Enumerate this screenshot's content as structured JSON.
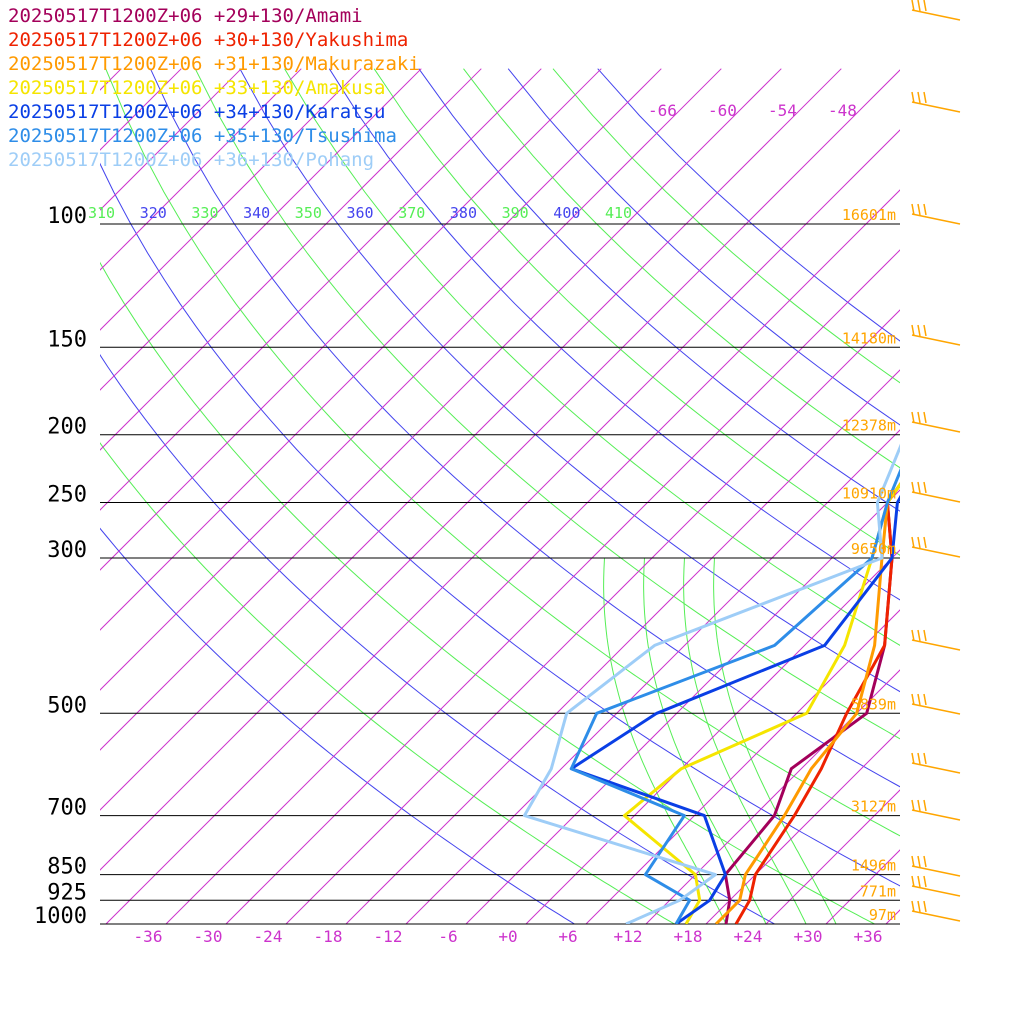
{
  "chart_data": {
    "type": "line",
    "title": "",
    "xlabel": "",
    "ylabel": "",
    "x_axis": {
      "unit": "°C",
      "ticks": [
        -36,
        -30,
        -24,
        -18,
        -12,
        -6,
        0,
        6,
        12,
        18,
        24,
        30,
        36
      ],
      "tick_labels": [
        "-36",
        "-30",
        "-24",
        "-18",
        "-12",
        "-6",
        "+0",
        "+6",
        "+12",
        "+18",
        "+24",
        "+30",
        "+36"
      ],
      "xlim": [
        -40,
        40
      ]
    },
    "y_axis": {
      "unit": "hPa",
      "log": true,
      "ylim": [
        1000,
        70
      ],
      "ticks": [
        100,
        150,
        200,
        250,
        300,
        500,
        700,
        850,
        925,
        1000
      ],
      "tick_labels": [
        "100",
        "150",
        "200",
        "250",
        "300",
        "500",
        "700",
        "850",
        "925",
        "1000"
      ]
    },
    "heights": [
      {
        "p": 100,
        "label": "16601m"
      },
      {
        "p": 150,
        "label": "14180m"
      },
      {
        "p": 200,
        "label": "12378m"
      },
      {
        "p": 250,
        "label": "10910m"
      },
      {
        "p": 300,
        "label": "9650m"
      },
      {
        "p": 500,
        "label": "5839m"
      },
      {
        "p": 700,
        "label": "3127m"
      },
      {
        "p": 850,
        "label": "1496m"
      },
      {
        "p": 925,
        "label": "771m"
      },
      {
        "p": 1000,
        "label": "97m"
      }
    ],
    "theta_labels": [
      "310",
      "320",
      "330",
      "340",
      "350",
      "360",
      "370",
      "380",
      "390",
      "400",
      "410"
    ],
    "isotherm_labels": [
      "-66",
      "-60",
      "-54",
      "-48"
    ],
    "legend_position": "top-left",
    "grid": true,
    "series": [
      {
        "name": "20250517T1200Z+06 +29+130/Amami",
        "color": "#a3005a",
        "points": [
          [
            1000,
            22
          ],
          [
            925,
            20
          ],
          [
            850,
            17
          ],
          [
            700,
            16
          ],
          [
            600,
            13
          ],
          [
            500,
            15
          ],
          [
            400,
            10
          ],
          [
            300,
            2
          ],
          [
            250,
            -4
          ],
          [
            200,
            -6
          ],
          [
            150,
            -6
          ],
          [
            125,
            -10
          ],
          [
            100,
            -5
          ],
          [
            85,
            -2
          ],
          [
            70,
            10
          ]
        ]
      },
      {
        "name": "20250517T1200Z+06 +30+130/Yakushima",
        "color": "#ee2200",
        "points": [
          [
            1000,
            23
          ],
          [
            925,
            22
          ],
          [
            850,
            20
          ],
          [
            700,
            18
          ],
          [
            600,
            16
          ],
          [
            500,
            13
          ],
          [
            400,
            10
          ],
          [
            300,
            2
          ],
          [
            250,
            -4
          ],
          [
            200,
            -6
          ],
          [
            150,
            -6
          ],
          [
            125,
            -9
          ],
          [
            100,
            -5
          ],
          [
            85,
            -1
          ],
          [
            70,
            10
          ]
        ]
      },
      {
        "name": "20250517T1200Z+06 +31+130/Makurazaki",
        "color": "#ff9a00",
        "points": [
          [
            1000,
            21
          ],
          [
            925,
            21
          ],
          [
            850,
            19
          ],
          [
            700,
            17
          ],
          [
            600,
            15
          ],
          [
            500,
            14
          ],
          [
            400,
            9
          ],
          [
            300,
            1
          ],
          [
            250,
            -4
          ],
          [
            200,
            -6
          ],
          [
            150,
            -6
          ],
          [
            125,
            -8
          ],
          [
            100,
            -5
          ],
          [
            85,
            -1
          ],
          [
            70,
            11
          ]
        ]
      },
      {
        "name": "20250517T1200Z+06 +33+130/Amakusa",
        "color": "#f5e500",
        "points": [
          [
            1000,
            18
          ],
          [
            925,
            17
          ],
          [
            850,
            14
          ],
          [
            700,
            1
          ],
          [
            600,
            2
          ],
          [
            500,
            9
          ],
          [
            400,
            6
          ],
          [
            300,
            0
          ],
          [
            250,
            -4
          ],
          [
            200,
            -6
          ],
          [
            150,
            -6
          ],
          [
            125,
            -5
          ],
          [
            100,
            -2
          ],
          [
            85,
            1
          ],
          [
            70,
            12
          ]
        ]
      },
      {
        "name": "20250517T1200Z+06 +34+130/Karatsu",
        "color": "#0a3fe5",
        "points": [
          [
            1000,
            17
          ],
          [
            925,
            18
          ],
          [
            850,
            17
          ],
          [
            700,
            9
          ],
          [
            600,
            -9
          ],
          [
            500,
            -6
          ],
          [
            400,
            4
          ],
          [
            300,
            2
          ],
          [
            250,
            -3
          ],
          [
            200,
            -6
          ],
          [
            150,
            -7
          ],
          [
            125,
            -5
          ],
          [
            100,
            0
          ],
          [
            85,
            3
          ],
          [
            70,
            13
          ]
        ]
      },
      {
        "name": "20250517T1200Z+06 +35+130/Tsushima",
        "color": "#2e8de8",
        "points": [
          [
            1000,
            17
          ],
          [
            925,
            16
          ],
          [
            850,
            9
          ],
          [
            700,
            7
          ],
          [
            600,
            -9
          ],
          [
            500,
            -12
          ],
          [
            400,
            -1
          ],
          [
            300,
            0
          ],
          [
            250,
            -4
          ],
          [
            200,
            -8
          ],
          [
            150,
            -8
          ],
          [
            125,
            -5
          ],
          [
            100,
            0
          ],
          [
            85,
            5
          ],
          [
            70,
            16
          ]
        ]
      },
      {
        "name": "20250517T1200Z+06 +36+130/Pohang",
        "color": "#9ecdf7",
        "points": [
          [
            1000,
            12
          ],
          [
            925,
            15
          ],
          [
            850,
            16
          ],
          [
            700,
            -9
          ],
          [
            600,
            -11
          ],
          [
            500,
            -15
          ],
          [
            400,
            -13
          ],
          [
            300,
            1
          ],
          [
            250,
            -5
          ],
          [
            200,
            -9
          ],
          [
            150,
            -8
          ],
          [
            125,
            -5
          ],
          [
            100,
            0
          ],
          [
            85,
            5
          ],
          [
            70,
            14
          ]
        ]
      }
    ]
  }
}
